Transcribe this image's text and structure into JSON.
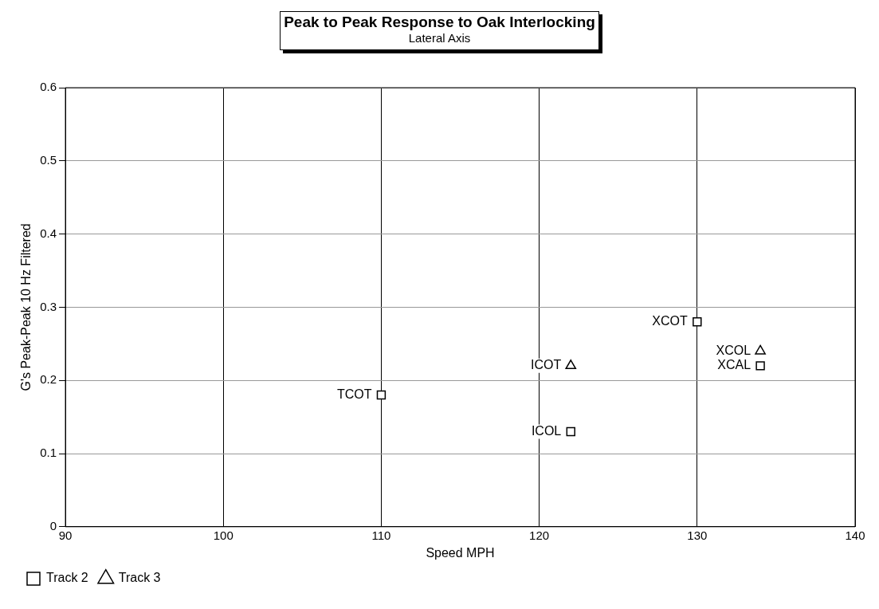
{
  "chart_data": {
    "type": "scatter",
    "title": "Peak to Peak Response to Oak Interlocking",
    "subtitle": "Lateral Axis",
    "xlabel": "Speed MPH",
    "ylabel": "G's Peak-Peak 10 Hz Filtered",
    "xlim": [
      90,
      140
    ],
    "xticks": [
      90,
      100,
      110,
      120,
      130,
      140
    ],
    "ylim": [
      0,
      0.6
    ],
    "yticks": [
      0,
      0.1,
      0.2,
      0.3,
      0.4,
      0.5,
      0.6
    ],
    "grid": true,
    "legend": "bottom left",
    "series": [
      {
        "name": "Track 2",
        "color": "#000000",
        "marker": "square",
        "x": [
          110,
          122,
          130,
          134
        ],
        "values": [
          0.18,
          0.13,
          0.28,
          0.22
        ]
      },
      {
        "name": "Track 3",
        "color": "#000000",
        "marker": "triangle",
        "x": [
          122,
          134
        ],
        "values": [
          0.22,
          0.24
        ]
      }
    ],
    "annotations": [
      {
        "text": "TCOT",
        "x": 110,
        "y": 0.18
      },
      {
        "text": "ICOL",
        "x": 122,
        "y": 0.13
      },
      {
        "text": "XCOT",
        "x": 130,
        "y": 0.28
      },
      {
        "text": "ICOT",
        "x": 122,
        "y": 0.22
      },
      {
        "text": "XCOL",
        "x": 134,
        "y": 0.24
      },
      {
        "text": "XCAL",
        "x": 134,
        "y": 0.22
      }
    ]
  }
}
